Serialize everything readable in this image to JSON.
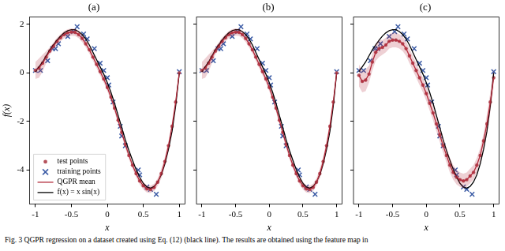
{
  "chart_data": [
    {
      "type": "line",
      "title": "(a)",
      "x_label": "x",
      "y_label": "f(x)",
      "legend": "lower left",
      "grid": false,
      "xlim": [
        -1.08,
        1.08
      ],
      "ylim": [
        -5.4,
        2.3
      ],
      "xticks": [
        -1,
        -0.5,
        0,
        0.5,
        1
      ],
      "yticks": [
        -4,
        -2,
        0,
        2
      ],
      "x": [
        -1,
        -0.95,
        -0.9,
        -0.85,
        -0.8,
        -0.75,
        -0.7,
        -0.65,
        -0.6,
        -0.55,
        -0.5,
        -0.45,
        -0.4,
        -0.35,
        -0.3,
        -0.25,
        -0.2,
        -0.15,
        -0.1,
        -0.05,
        0,
        0.05,
        0.1,
        0.15,
        0.2,
        0.25,
        0.3,
        0.35,
        0.4,
        0.45,
        0.5,
        0.55,
        0.6,
        0.65,
        0.7,
        0.75,
        0.8,
        0.85,
        0.9,
        0.95,
        1
      ],
      "series": [
        {
          "name": "test points",
          "type": "scatter",
          "marker": "circle",
          "color": "#b5525c",
          "values": [
            0.1,
            0.2,
            0.4,
            0.65,
            0.9,
            1.1,
            1.3,
            1.45,
            1.58,
            1.65,
            1.68,
            1.67,
            1.58,
            1.42,
            1.2,
            0.95,
            0.65,
            0.35,
            0.05,
            -0.25,
            -0.6,
            -1.0,
            -1.45,
            -1.95,
            -2.45,
            -2.95,
            -3.4,
            -3.8,
            -4.15,
            -4.45,
            -4.65,
            -4.78,
            -4.8,
            -4.72,
            -4.5,
            -4.15,
            -3.65,
            -3.0,
            -2.2,
            -1.2,
            0
          ]
        },
        {
          "name": "training points",
          "type": "scatter",
          "marker": "x",
          "color": "#3b5ba5",
          "x": [
            -1,
            -0.93,
            -0.83,
            -0.76,
            -0.72,
            -0.68,
            -0.55,
            -0.47,
            -0.42,
            -0.33,
            -0.28,
            -0.18,
            -0.1,
            -0.05,
            0,
            0.02,
            0.08,
            0.18,
            0.2,
            0.25,
            0.43,
            0.45,
            0.55,
            0.6,
            0.68,
            1
          ],
          "values": [
            0.1,
            0.1,
            0.5,
            1.0,
            1.0,
            1.2,
            1.5,
            1.7,
            1.9,
            1.6,
            1.4,
            1.0,
            0.4,
            0.1,
            -0.2,
            -0.5,
            -1.2,
            -2.2,
            -2.6,
            -3.0,
            -4.0,
            -4.2,
            -4.7,
            -4.8,
            -5.0,
            0.05
          ]
        },
        {
          "name": "QGPR mean",
          "type": "line",
          "line_style": "solid",
          "color": "#b22a3a",
          "values": [
            0.1,
            0.2,
            0.4,
            0.65,
            0.9,
            1.1,
            1.3,
            1.45,
            1.58,
            1.65,
            1.68,
            1.67,
            1.58,
            1.42,
            1.2,
            0.95,
            0.65,
            0.35,
            0.05,
            -0.25,
            -0.6,
            -1.0,
            -1.45,
            -1.95,
            -2.45,
            -2.95,
            -3.4,
            -3.8,
            -4.15,
            -4.45,
            -4.65,
            -4.78,
            -4.8,
            -4.72,
            -4.5,
            -4.15,
            -3.65,
            -3.0,
            -2.2,
            -1.2,
            0
          ],
          "upper": [
            0.45,
            0.6,
            0.75,
            0.9,
            1.05,
            1.25,
            1.45,
            1.6,
            1.73,
            1.8,
            1.83,
            1.82,
            1.73,
            1.57,
            1.35,
            1.1,
            0.8,
            0.5,
            0.2,
            -0.1,
            -0.45,
            -0.85,
            -1.3,
            -1.8,
            -2.3,
            -2.8,
            -3.25,
            -3.65,
            -4.0,
            -4.3,
            -4.5,
            -4.63,
            -4.65,
            -4.57,
            -4.35,
            -3.95,
            -3.45,
            -2.8,
            -2.0,
            -1.05,
            0.1
          ],
          "lower": [
            -0.25,
            -0.2,
            0.05,
            0.4,
            0.75,
            0.95,
            1.15,
            1.3,
            1.43,
            1.5,
            1.53,
            1.52,
            1.43,
            1.27,
            1.05,
            0.8,
            0.5,
            0.2,
            -0.1,
            -0.4,
            -0.75,
            -1.15,
            -1.6,
            -2.1,
            -2.6,
            -3.1,
            -3.55,
            -3.95,
            -4.3,
            -4.6,
            -4.8,
            -4.93,
            -4.95,
            -4.87,
            -4.65,
            -4.35,
            -3.85,
            -3.2,
            -2.4,
            -1.35,
            -0.1
          ]
        },
        {
          "name": "f(x) = x sin(x)",
          "type": "line",
          "line_style": "solid",
          "color": "#000000",
          "values": [
            0.05,
            0.25,
            0.45,
            0.7,
            0.95,
            1.15,
            1.35,
            1.52,
            1.65,
            1.74,
            1.78,
            1.78,
            1.7,
            1.58,
            1.4,
            1.15,
            0.85,
            0.55,
            0.25,
            -0.05,
            -0.4,
            -0.8,
            -1.25,
            -1.75,
            -2.25,
            -2.75,
            -3.2,
            -3.6,
            -3.98,
            -4.3,
            -4.55,
            -4.7,
            -4.75,
            -4.68,
            -4.5,
            -4.2,
            -3.75,
            -3.15,
            -2.4,
            -1.35,
            0
          ]
        }
      ]
    },
    {
      "type": "line",
      "title": "(b)",
      "x_label": "x",
      "grid": false,
      "tick_labels": "x",
      "xlim": [
        -1.08,
        1.08
      ],
      "ylim": [
        -5.4,
        2.3
      ],
      "xticks": [
        -1,
        -0.5,
        0,
        0.5,
        1
      ],
      "yticks": [
        -4,
        -2,
        0,
        2
      ],
      "x": [
        -1,
        -0.95,
        -0.9,
        -0.85,
        -0.8,
        -0.75,
        -0.7,
        -0.65,
        -0.6,
        -0.55,
        -0.5,
        -0.45,
        -0.4,
        -0.35,
        -0.3,
        -0.25,
        -0.2,
        -0.15,
        -0.1,
        -0.05,
        0,
        0.05,
        0.1,
        0.15,
        0.2,
        0.25,
        0.3,
        0.35,
        0.4,
        0.45,
        0.5,
        0.55,
        0.6,
        0.65,
        0.7,
        0.75,
        0.8,
        0.85,
        0.9,
        0.95,
        1
      ],
      "series": [
        {
          "name": "test points",
          "type": "scatter",
          "marker": "circle",
          "color": "#b5525c",
          "values": [
            0.1,
            0.2,
            0.4,
            0.65,
            0.9,
            1.1,
            1.3,
            1.45,
            1.58,
            1.65,
            1.68,
            1.67,
            1.58,
            1.42,
            1.2,
            0.95,
            0.65,
            0.35,
            0.05,
            -0.25,
            -0.6,
            -1.0,
            -1.45,
            -1.95,
            -2.45,
            -2.95,
            -3.4,
            -3.8,
            -4.15,
            -4.45,
            -4.65,
            -4.78,
            -4.8,
            -4.72,
            -4.5,
            -4.15,
            -3.65,
            -3.0,
            -2.2,
            -1.2,
            0
          ]
        },
        {
          "name": "training points",
          "type": "scatter",
          "marker": "x",
          "color": "#3b5ba5",
          "x": [
            -1,
            -0.93,
            -0.83,
            -0.76,
            -0.72,
            -0.68,
            -0.55,
            -0.47,
            -0.42,
            -0.33,
            -0.28,
            -0.18,
            -0.1,
            -0.05,
            0,
            0.02,
            0.08,
            0.18,
            0.2,
            0.25,
            0.43,
            0.45,
            0.55,
            0.6,
            0.68,
            1
          ],
          "values": [
            0.1,
            0.1,
            0.5,
            1.0,
            1.0,
            1.2,
            1.5,
            1.7,
            1.9,
            1.6,
            1.4,
            1.0,
            0.4,
            0.1,
            -0.2,
            -0.5,
            -1.2,
            -2.2,
            -2.6,
            -3.0,
            -4.0,
            -4.2,
            -4.7,
            -4.8,
            -5.0,
            0.05
          ]
        },
        {
          "name": "QGPR mean",
          "type": "line",
          "line_style": "solid",
          "color": "#b22a3a",
          "values": [
            0.1,
            0.2,
            0.4,
            0.65,
            0.9,
            1.1,
            1.3,
            1.45,
            1.58,
            1.65,
            1.68,
            1.67,
            1.58,
            1.42,
            1.2,
            0.95,
            0.65,
            0.35,
            0.05,
            -0.25,
            -0.6,
            -1.0,
            -1.45,
            -1.95,
            -2.45,
            -2.95,
            -3.4,
            -3.8,
            -4.15,
            -4.45,
            -4.65,
            -4.78,
            -4.8,
            -4.72,
            -4.5,
            -4.15,
            -3.65,
            -3.0,
            -2.2,
            -1.2,
            0
          ],
          "upper": [
            0.45,
            0.6,
            0.75,
            0.9,
            1.05,
            1.25,
            1.45,
            1.6,
            1.73,
            1.8,
            1.83,
            1.82,
            1.73,
            1.57,
            1.35,
            1.1,
            0.8,
            0.5,
            0.2,
            -0.1,
            -0.45,
            -0.85,
            -1.3,
            -1.8,
            -2.3,
            -2.8,
            -3.25,
            -3.65,
            -4.0,
            -4.3,
            -4.5,
            -4.63,
            -4.65,
            -4.57,
            -4.35,
            -3.95,
            -3.45,
            -2.8,
            -2.0,
            -1.05,
            0.1
          ],
          "lower": [
            -0.25,
            -0.2,
            0.05,
            0.4,
            0.75,
            0.95,
            1.15,
            1.3,
            1.43,
            1.5,
            1.53,
            1.52,
            1.43,
            1.27,
            1.05,
            0.8,
            0.5,
            0.2,
            -0.1,
            -0.4,
            -0.75,
            -1.15,
            -1.6,
            -2.1,
            -2.6,
            -3.1,
            -3.55,
            -3.95,
            -4.3,
            -4.6,
            -4.8,
            -4.93,
            -4.95,
            -4.87,
            -4.65,
            -4.35,
            -3.85,
            -3.2,
            -2.4,
            -1.35,
            -0.1
          ]
        },
        {
          "name": "f(x) = x sin(x)",
          "type": "line",
          "line_style": "solid",
          "color": "#000000",
          "values": [
            0.05,
            0.25,
            0.45,
            0.7,
            0.95,
            1.15,
            1.35,
            1.52,
            1.65,
            1.74,
            1.78,
            1.78,
            1.7,
            1.58,
            1.4,
            1.15,
            0.85,
            0.55,
            0.25,
            -0.05,
            -0.4,
            -0.8,
            -1.25,
            -1.75,
            -2.25,
            -2.75,
            -3.2,
            -3.6,
            -3.98,
            -4.3,
            -4.55,
            -4.7,
            -4.75,
            -4.68,
            -4.5,
            -4.2,
            -3.75,
            -3.15,
            -2.4,
            -1.35,
            0
          ]
        }
      ]
    },
    {
      "type": "line",
      "title": "(c)",
      "x_label": "x",
      "grid": false,
      "tick_labels": "x",
      "xlim": [
        -1.08,
        1.08
      ],
      "ylim": [
        -5.4,
        2.3
      ],
      "xticks": [
        -1,
        -0.5,
        0,
        0.5,
        1
      ],
      "yticks": [
        -4,
        -2,
        0,
        2
      ],
      "x": [
        -1,
        -0.95,
        -0.9,
        -0.85,
        -0.8,
        -0.75,
        -0.7,
        -0.65,
        -0.6,
        -0.55,
        -0.5,
        -0.45,
        -0.4,
        -0.35,
        -0.3,
        -0.25,
        -0.2,
        -0.15,
        -0.1,
        -0.05,
        0,
        0.05,
        0.1,
        0.15,
        0.2,
        0.25,
        0.3,
        0.35,
        0.4,
        0.45,
        0.5,
        0.55,
        0.6,
        0.65,
        0.7,
        0.75,
        0.8,
        0.85,
        0.9,
        0.95,
        1
      ],
      "series": [
        {
          "name": "test points",
          "type": "scatter",
          "marker": "circle",
          "color": "#b5525c",
          "values": [
            -0.1,
            -0.35,
            -0.3,
            -0.05,
            0.45,
            0.85,
            1.0,
            1.05,
            1.15,
            1.3,
            1.35,
            1.35,
            1.3,
            1.2,
            1.0,
            0.7,
            0.4,
            0.1,
            -0.2,
            -0.5,
            -0.85,
            -1.25,
            -1.65,
            -2.1,
            -2.55,
            -3.0,
            -3.4,
            -3.8,
            -4.1,
            -4.3,
            -4.4,
            -4.45,
            -4.4,
            -4.25,
            -4.1,
            -3.8,
            -3.4,
            -2.8,
            -2.1,
            -1.2,
            -0.2
          ]
        },
        {
          "name": "training points",
          "type": "scatter",
          "marker": "x",
          "color": "#3b5ba5",
          "x": [
            -1,
            -0.93,
            -0.83,
            -0.76,
            -0.72,
            -0.68,
            -0.55,
            -0.47,
            -0.42,
            -0.33,
            -0.28,
            -0.18,
            -0.1,
            -0.05,
            0,
            0.02,
            0.08,
            0.18,
            0.2,
            0.25,
            0.43,
            0.45,
            0.55,
            0.6,
            0.68,
            1
          ],
          "values": [
            0.1,
            0.1,
            0.5,
            1.0,
            1.0,
            1.2,
            1.5,
            1.7,
            1.9,
            1.6,
            1.4,
            1.0,
            0.4,
            0.1,
            -0.2,
            -0.5,
            -1.2,
            -2.2,
            -2.6,
            -3.0,
            -4.0,
            -4.2,
            -4.7,
            -4.8,
            -5.0,
            0.05
          ]
        },
        {
          "name": "QGPR mean",
          "type": "line",
          "line_style": "solid",
          "color": "#b22a3a",
          "values": [
            -0.1,
            -0.35,
            -0.3,
            -0.05,
            0.45,
            0.85,
            1.0,
            1.05,
            1.15,
            1.3,
            1.35,
            1.35,
            1.3,
            1.2,
            1.0,
            0.7,
            0.4,
            0.1,
            -0.2,
            -0.5,
            -0.85,
            -1.25,
            -1.65,
            -2.1,
            -2.55,
            -3.0,
            -3.4,
            -3.8,
            -4.1,
            -4.3,
            -4.4,
            -4.45,
            -4.4,
            -4.25,
            -4.1,
            -3.8,
            -3.4,
            -2.8,
            -2.1,
            -1.2,
            -0.2
          ],
          "upper": [
            0.35,
            0.1,
            0.15,
            0.3,
            0.8,
            1.2,
            1.35,
            1.35,
            1.45,
            1.6,
            1.65,
            1.65,
            1.6,
            1.5,
            1.3,
            1.0,
            0.7,
            0.4,
            0.1,
            -0.2,
            -0.55,
            -0.95,
            -1.35,
            -1.8,
            -2.25,
            -2.7,
            -3.1,
            -3.5,
            -3.8,
            -4.0,
            -4.1,
            -4.15,
            -4.1,
            -3.95,
            -3.8,
            -3.5,
            -3.1,
            -2.5,
            -1.7,
            -0.8,
            0.2
          ],
          "lower": [
            -0.55,
            -0.8,
            -0.75,
            -0.4,
            0.1,
            0.5,
            0.65,
            0.75,
            0.85,
            1.0,
            1.05,
            1.05,
            1.0,
            0.9,
            0.7,
            0.4,
            0.1,
            -0.2,
            -0.5,
            -0.8,
            -1.15,
            -1.55,
            -1.95,
            -2.4,
            -2.85,
            -3.3,
            -3.7,
            -4.1,
            -4.4,
            -4.6,
            -4.7,
            -4.75,
            -4.7,
            -4.55,
            -4.4,
            -4.1,
            -3.7,
            -3.1,
            -2.5,
            -1.6,
            -0.6
          ]
        },
        {
          "name": "f(x) = x sin(x)",
          "type": "line",
          "line_style": "solid",
          "color": "#000000",
          "values": [
            0.05,
            0.25,
            0.45,
            0.7,
            0.95,
            1.15,
            1.35,
            1.52,
            1.65,
            1.74,
            1.78,
            1.78,
            1.7,
            1.58,
            1.4,
            1.15,
            0.85,
            0.55,
            0.25,
            -0.05,
            -0.4,
            -0.8,
            -1.25,
            -1.75,
            -2.25,
            -2.75,
            -3.2,
            -3.6,
            -3.98,
            -4.3,
            -4.55,
            -4.7,
            -4.75,
            -4.68,
            -4.5,
            -4.2,
            -3.75,
            -3.15,
            -2.4,
            -1.35,
            0
          ]
        }
      ]
    }
  ],
  "caption": "Fig. 3 QGPR regression on a dataset created using Eq. (12) (black line). The results are obtained using the feature map in"
}
